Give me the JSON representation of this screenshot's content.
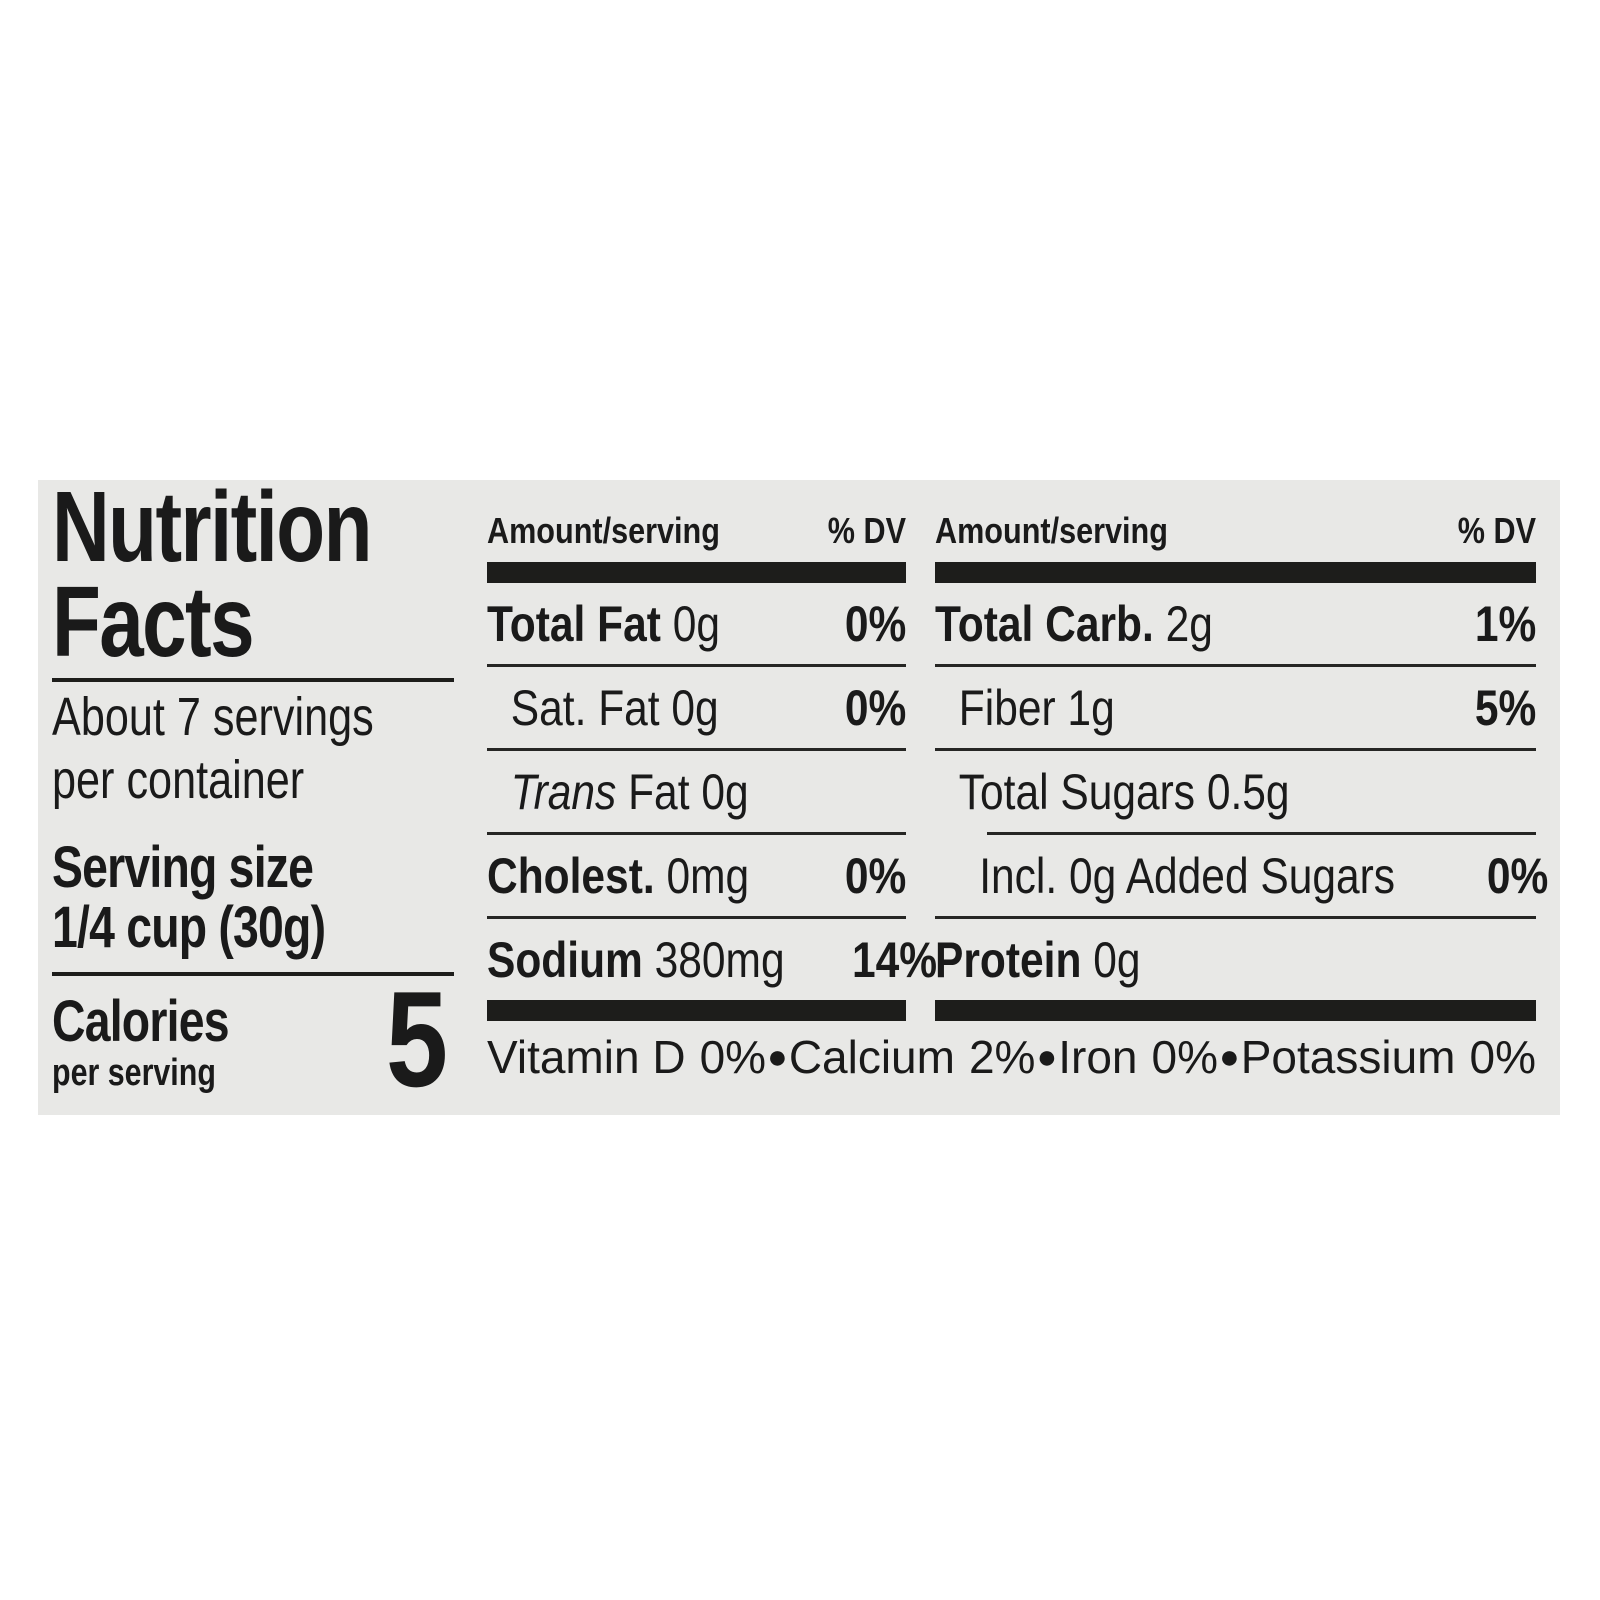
{
  "label": {
    "title": [
      "Nutrition",
      "Facts"
    ],
    "servings_per_container": [
      "About 7 servings",
      "per container"
    ],
    "serving_size": [
      "Serving size",
      "1/4 cup (30g)"
    ],
    "calories": {
      "label": "Calories",
      "sublabel": "per serving",
      "value": "5"
    },
    "column_headers": {
      "amount": "Amount/serving",
      "dv": "% DV"
    },
    "nutrient_columns": [
      {
        "rows": [
          {
            "bold": "Total Fat",
            "italic": "",
            "text": " 0g",
            "dv": "0%"
          },
          {
            "bold": "",
            "italic": "",
            "text": "Sat. Fat 0g",
            "dv": "0%"
          },
          {
            "bold": "",
            "italic": "Trans",
            "text": " Fat 0g",
            "dv": ""
          },
          {
            "bold": "Cholest.",
            "italic": "",
            "text": " 0mg",
            "dv": "0%"
          },
          {
            "bold": "Sodium",
            "italic": "",
            "text": " 380mg",
            "dv": "14%"
          }
        ]
      },
      {
        "rows": [
          {
            "bold": "Total Carb.",
            "italic": "",
            "text": " 2g",
            "dv": "1%"
          },
          {
            "bold": "",
            "italic": "",
            "text": "Fiber 1g",
            "dv": "5%"
          },
          {
            "bold": "",
            "italic": "",
            "text": "Total Sugars 0.5g",
            "dv": ""
          },
          {
            "bold": "",
            "italic": "",
            "text": "Incl. 0g Added Sugars",
            "dv": "0%"
          },
          {
            "bold": "Protein",
            "italic": "",
            "text": " 0g",
            "dv": ""
          }
        ]
      }
    ],
    "micronutrients": [
      {
        "name": "Vitamin D",
        "value": "0%"
      },
      {
        "name": "Calcium",
        "value": "2%"
      },
      {
        "name": "Iron",
        "value": "0%"
      },
      {
        "name": "Potassium",
        "value": "0%"
      }
    ],
    "separator": "●",
    "colors": {
      "ink": "#1a1a1a",
      "card_bg": "#e8e8e6",
      "page_bg": "#ffffff"
    }
  }
}
